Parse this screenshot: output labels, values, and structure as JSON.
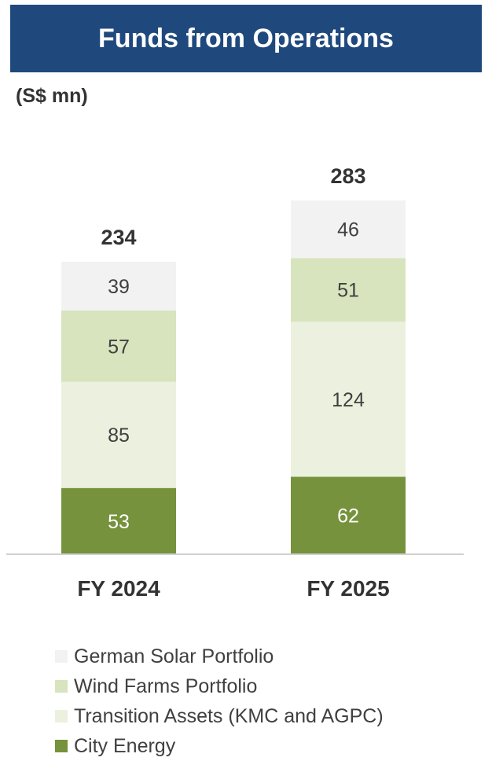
{
  "chart_data": {
    "type": "bar",
    "stacked": true,
    "title": "Funds from Operations",
    "unit_label": "(S$ mn)",
    "categories": [
      "FY 2024",
      "FY 2025"
    ],
    "totals": [
      234,
      283
    ],
    "series": [
      {
        "name": "City Energy",
        "values": [
          53,
          62
        ],
        "color": "#76923c",
        "label_color": "#ffffff"
      },
      {
        "name": "Transition Assets (KMC and AGPC)",
        "values": [
          85,
          124
        ],
        "color": "#ebf1de",
        "label_color": "#404040"
      },
      {
        "name": "Wind Farms Portfolio",
        "values": [
          57,
          51
        ],
        "color": "#d7e4bd",
        "label_color": "#404040"
      },
      {
        "name": "German Solar Portfolio",
        "values": [
          39,
          46
        ],
        "color": "#f2f2f2",
        "label_color": "#404040"
      }
    ],
    "legend_order": [
      3,
      2,
      1,
      0
    ],
    "legend_position": "bottom",
    "grid": false
  }
}
